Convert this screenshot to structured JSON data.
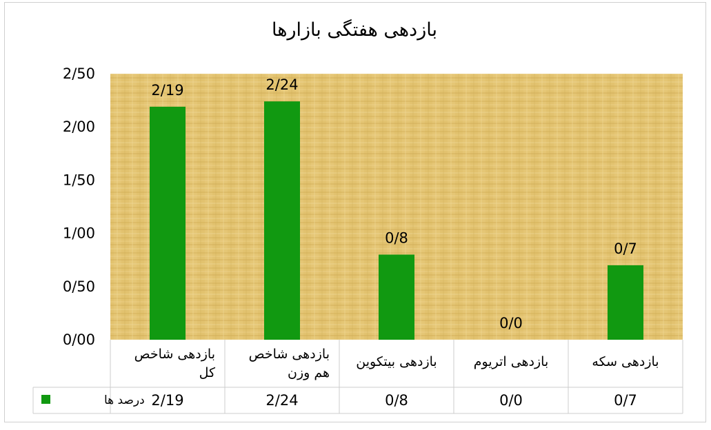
{
  "chart_data": {
    "type": "bar",
    "title": "بازدهی هفتگی بازارها",
    "categories": [
      [
        "بازدهی شاخص",
        "کل"
      ],
      [
        "بازدهی  شاخص",
        "هم وزن"
      ],
      [
        "بازدهی بیتکوین"
      ],
      [
        "بازدهی اتریوم"
      ],
      [
        "بازدهی سکه"
      ]
    ],
    "values": [
      2.19,
      2.24,
      0.8,
      0.0,
      0.7
    ],
    "data_labels": [
      "2/19",
      "2/24",
      "0/8",
      "0/0",
      "0/7"
    ],
    "series": [
      {
        "name": "درصد ها",
        "color": "#119911",
        "values": [
          2.19,
          2.24,
          0.8,
          0.0,
          0.7
        ],
        "table_values": [
          "2/19",
          "2/24",
          "0/8",
          "0/0",
          "0/7"
        ]
      }
    ],
    "y_ticks": [
      {
        "value": 0.0,
        "label": "0/00"
      },
      {
        "value": 0.5,
        "label": "0/50"
      },
      {
        "value": 1.0,
        "label": "1/00"
      },
      {
        "value": 1.5,
        "label": "1/50"
      },
      {
        "value": 2.0,
        "label": "2/00"
      },
      {
        "value": 2.5,
        "label": "2/50"
      }
    ],
    "ylim": [
      0,
      2.5
    ],
    "grid": false,
    "legend": "data-table-left",
    "background": "papyrus-texture",
    "colors": {
      "bar": "#119911",
      "plot_bg_base": "#e6c878",
      "plot_bg_line": "#c9a54e",
      "table_border": "#cccccc"
    }
  }
}
